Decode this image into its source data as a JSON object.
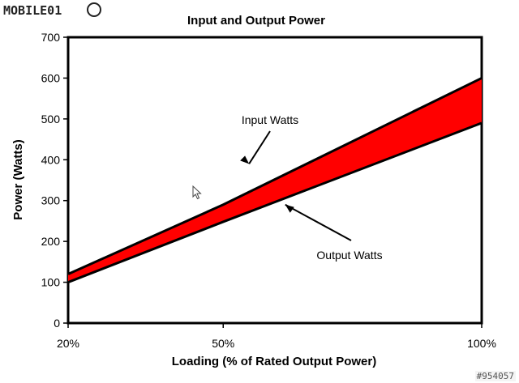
{
  "logo": {
    "text": "MOBILE01"
  },
  "watermark": "#954057",
  "chart_data": {
    "type": "area",
    "title": "Input and Output Power",
    "xlabel": "Loading (% of Rated Output Power)",
    "ylabel": "Power (Watts)",
    "categories": [
      "20%",
      "50%",
      "100%"
    ],
    "x": [
      20,
      50,
      100
    ],
    "series": [
      {
        "name": "Input Watts",
        "values": [
          120,
          290,
          600
        ]
      },
      {
        "name": "Output Watts",
        "values": [
          100,
          248,
          490
        ]
      }
    ],
    "ylim": [
      0,
      700
    ],
    "yticks": [
      0,
      100,
      200,
      300,
      400,
      500,
      600,
      700
    ],
    "fill_color": "#ff0000",
    "line_color": "#000000",
    "grid": false,
    "annotations": [
      {
        "text": "Input Watts",
        "arrow_to": [
          55,
          390
        ]
      },
      {
        "text": "Output Watts",
        "arrow_to": [
          62,
          290
        ]
      }
    ]
  }
}
